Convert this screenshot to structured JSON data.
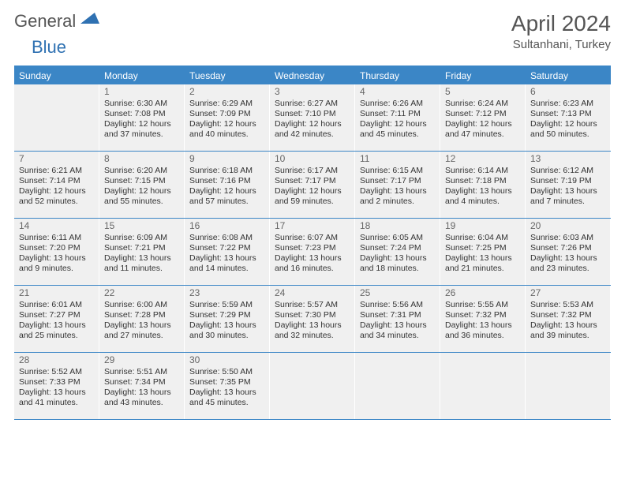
{
  "logo": {
    "part1": "General",
    "part2": "Blue"
  },
  "title": "April 2024",
  "location": "Sultanhani, Turkey",
  "colors": {
    "accent": "#3b86c6",
    "cell_bg": "#f0f0f0",
    "text": "#333333",
    "muted": "#666666"
  },
  "day_headers": [
    "Sunday",
    "Monday",
    "Tuesday",
    "Wednesday",
    "Thursday",
    "Friday",
    "Saturday"
  ],
  "weeks": [
    [
      {
        "blank": true
      },
      {
        "n": "1",
        "sr": "Sunrise: 6:30 AM",
        "ss": "Sunset: 7:08 PM",
        "d1": "Daylight: 12 hours",
        "d2": "and 37 minutes."
      },
      {
        "n": "2",
        "sr": "Sunrise: 6:29 AM",
        "ss": "Sunset: 7:09 PM",
        "d1": "Daylight: 12 hours",
        "d2": "and 40 minutes."
      },
      {
        "n": "3",
        "sr": "Sunrise: 6:27 AM",
        "ss": "Sunset: 7:10 PM",
        "d1": "Daylight: 12 hours",
        "d2": "and 42 minutes."
      },
      {
        "n": "4",
        "sr": "Sunrise: 6:26 AM",
        "ss": "Sunset: 7:11 PM",
        "d1": "Daylight: 12 hours",
        "d2": "and 45 minutes."
      },
      {
        "n": "5",
        "sr": "Sunrise: 6:24 AM",
        "ss": "Sunset: 7:12 PM",
        "d1": "Daylight: 12 hours",
        "d2": "and 47 minutes."
      },
      {
        "n": "6",
        "sr": "Sunrise: 6:23 AM",
        "ss": "Sunset: 7:13 PM",
        "d1": "Daylight: 12 hours",
        "d2": "and 50 minutes."
      }
    ],
    [
      {
        "n": "7",
        "sr": "Sunrise: 6:21 AM",
        "ss": "Sunset: 7:14 PM",
        "d1": "Daylight: 12 hours",
        "d2": "and 52 minutes."
      },
      {
        "n": "8",
        "sr": "Sunrise: 6:20 AM",
        "ss": "Sunset: 7:15 PM",
        "d1": "Daylight: 12 hours",
        "d2": "and 55 minutes."
      },
      {
        "n": "9",
        "sr": "Sunrise: 6:18 AM",
        "ss": "Sunset: 7:16 PM",
        "d1": "Daylight: 12 hours",
        "d2": "and 57 minutes."
      },
      {
        "n": "10",
        "sr": "Sunrise: 6:17 AM",
        "ss": "Sunset: 7:17 PM",
        "d1": "Daylight: 12 hours",
        "d2": "and 59 minutes."
      },
      {
        "n": "11",
        "sr": "Sunrise: 6:15 AM",
        "ss": "Sunset: 7:17 PM",
        "d1": "Daylight: 13 hours",
        "d2": "and 2 minutes."
      },
      {
        "n": "12",
        "sr": "Sunrise: 6:14 AM",
        "ss": "Sunset: 7:18 PM",
        "d1": "Daylight: 13 hours",
        "d2": "and 4 minutes."
      },
      {
        "n": "13",
        "sr": "Sunrise: 6:12 AM",
        "ss": "Sunset: 7:19 PM",
        "d1": "Daylight: 13 hours",
        "d2": "and 7 minutes."
      }
    ],
    [
      {
        "n": "14",
        "sr": "Sunrise: 6:11 AM",
        "ss": "Sunset: 7:20 PM",
        "d1": "Daylight: 13 hours",
        "d2": "and 9 minutes."
      },
      {
        "n": "15",
        "sr": "Sunrise: 6:09 AM",
        "ss": "Sunset: 7:21 PM",
        "d1": "Daylight: 13 hours",
        "d2": "and 11 minutes."
      },
      {
        "n": "16",
        "sr": "Sunrise: 6:08 AM",
        "ss": "Sunset: 7:22 PM",
        "d1": "Daylight: 13 hours",
        "d2": "and 14 minutes."
      },
      {
        "n": "17",
        "sr": "Sunrise: 6:07 AM",
        "ss": "Sunset: 7:23 PM",
        "d1": "Daylight: 13 hours",
        "d2": "and 16 minutes."
      },
      {
        "n": "18",
        "sr": "Sunrise: 6:05 AM",
        "ss": "Sunset: 7:24 PM",
        "d1": "Daylight: 13 hours",
        "d2": "and 18 minutes."
      },
      {
        "n": "19",
        "sr": "Sunrise: 6:04 AM",
        "ss": "Sunset: 7:25 PM",
        "d1": "Daylight: 13 hours",
        "d2": "and 21 minutes."
      },
      {
        "n": "20",
        "sr": "Sunrise: 6:03 AM",
        "ss": "Sunset: 7:26 PM",
        "d1": "Daylight: 13 hours",
        "d2": "and 23 minutes."
      }
    ],
    [
      {
        "n": "21",
        "sr": "Sunrise: 6:01 AM",
        "ss": "Sunset: 7:27 PM",
        "d1": "Daylight: 13 hours",
        "d2": "and 25 minutes."
      },
      {
        "n": "22",
        "sr": "Sunrise: 6:00 AM",
        "ss": "Sunset: 7:28 PM",
        "d1": "Daylight: 13 hours",
        "d2": "and 27 minutes."
      },
      {
        "n": "23",
        "sr": "Sunrise: 5:59 AM",
        "ss": "Sunset: 7:29 PM",
        "d1": "Daylight: 13 hours",
        "d2": "and 30 minutes."
      },
      {
        "n": "24",
        "sr": "Sunrise: 5:57 AM",
        "ss": "Sunset: 7:30 PM",
        "d1": "Daylight: 13 hours",
        "d2": "and 32 minutes."
      },
      {
        "n": "25",
        "sr": "Sunrise: 5:56 AM",
        "ss": "Sunset: 7:31 PM",
        "d1": "Daylight: 13 hours",
        "d2": "and 34 minutes."
      },
      {
        "n": "26",
        "sr": "Sunrise: 5:55 AM",
        "ss": "Sunset: 7:32 PM",
        "d1": "Daylight: 13 hours",
        "d2": "and 36 minutes."
      },
      {
        "n": "27",
        "sr": "Sunrise: 5:53 AM",
        "ss": "Sunset: 7:32 PM",
        "d1": "Daylight: 13 hours",
        "d2": "and 39 minutes."
      }
    ],
    [
      {
        "n": "28",
        "sr": "Sunrise: 5:52 AM",
        "ss": "Sunset: 7:33 PM",
        "d1": "Daylight: 13 hours",
        "d2": "and 41 minutes."
      },
      {
        "n": "29",
        "sr": "Sunrise: 5:51 AM",
        "ss": "Sunset: 7:34 PM",
        "d1": "Daylight: 13 hours",
        "d2": "and 43 minutes."
      },
      {
        "n": "30",
        "sr": "Sunrise: 5:50 AM",
        "ss": "Sunset: 7:35 PM",
        "d1": "Daylight: 13 hours",
        "d2": "and 45 minutes."
      },
      {
        "blank": true
      },
      {
        "blank": true
      },
      {
        "blank": true
      },
      {
        "blank": true
      }
    ]
  ]
}
